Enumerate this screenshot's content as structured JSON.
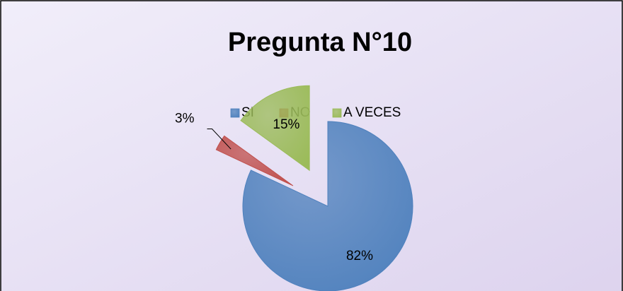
{
  "chart_data": {
    "type": "pie",
    "title": "Pregunta  N°10",
    "categories": [
      "SI",
      "NO",
      "A VECES"
    ],
    "values": [
      82,
      3,
      15
    ],
    "value_labels": [
      "82%",
      "3%",
      "15%"
    ],
    "colors": [
      "#4f81bd",
      "#c0504d",
      "#9bbb59"
    ],
    "legend": "top"
  }
}
